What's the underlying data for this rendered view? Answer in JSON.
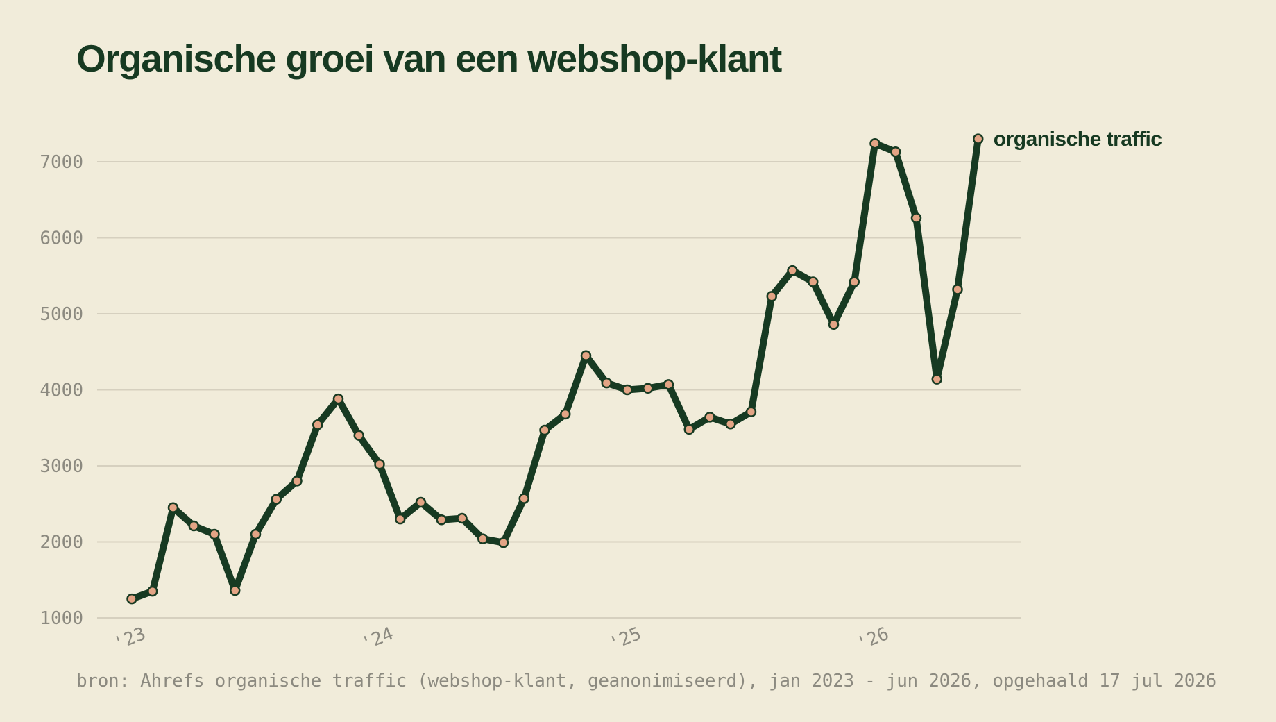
{
  "chart_data": {
    "type": "line",
    "title": "Organische groei van een webshop-klant",
    "source": "bron: Ahrefs organische traffic (webshop-klant, geanonimiseerd), jan 2023 - jun 2026, opgehaald 17 jul 2026",
    "x": [
      "2023-01",
      "2023-02",
      "2023-03",
      "2023-04",
      "2023-05",
      "2023-06",
      "2023-07",
      "2023-08",
      "2023-09",
      "2023-10",
      "2023-11",
      "2023-12",
      "2024-01",
      "2024-02",
      "2024-03",
      "2024-04",
      "2024-05",
      "2024-06",
      "2024-07",
      "2024-08",
      "2024-09",
      "2024-10",
      "2024-11",
      "2024-12",
      "2025-01",
      "2025-02",
      "2025-03",
      "2025-04",
      "2025-05",
      "2025-06",
      "2025-07",
      "2025-08",
      "2025-09",
      "2025-10",
      "2025-11",
      "2025-12",
      "2026-01",
      "2026-02",
      "2026-03",
      "2026-04",
      "2026-05",
      "2026-06"
    ],
    "series": [
      {
        "name": "organische traffic",
        "values": [
          1250,
          1350,
          2450,
          2210,
          2100,
          1360,
          2100,
          2560,
          2800,
          3540,
          3880,
          3400,
          3020,
          2300,
          2520,
          2290,
          2310,
          2040,
          1990,
          2570,
          3470,
          3680,
          4450,
          4090,
          4000,
          4020,
          4070,
          3480,
          3640,
          3550,
          3710,
          5230,
          5570,
          5420,
          4860,
          5420,
          7240,
          7130,
          6260,
          4140,
          5320,
          7300
        ]
      }
    ],
    "x_ticks": [
      {
        "value": "2023-01",
        "label": "'23"
      },
      {
        "value": "2024-01",
        "label": "'24"
      },
      {
        "value": "2025-01",
        "label": "'25"
      },
      {
        "value": "2026-01",
        "label": "'26"
      }
    ],
    "y_ticks": [
      1000,
      2000,
      3000,
      4000,
      5000,
      6000,
      7000
    ],
    "ylim": [
      1000,
      7000
    ],
    "grid": "horizontal",
    "legend": "direct label at end of line",
    "colors": {
      "background": "#f1ecda",
      "line": "#173a22",
      "marker": "#e3a485",
      "grid": "#d6d0bf",
      "muted_text": "#8c8a80"
    }
  }
}
